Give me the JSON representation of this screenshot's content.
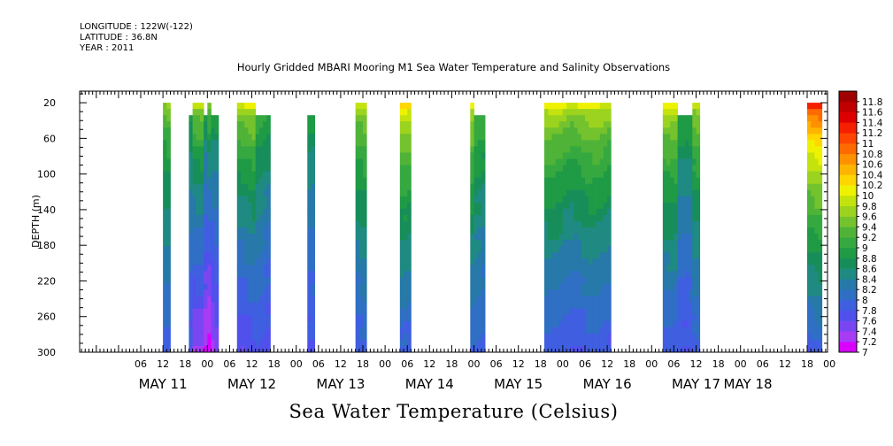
{
  "header": {
    "longitude": "LONGITUDE : 122W(-122)",
    "latitude": "LATITUDE : 36.8N",
    "year": "YEAR : 2011"
  },
  "chart_data": {
    "type": "heatmap",
    "title": "Hourly Gridded MBARI Mooring M1 Sea Water Temperature and Salinity Observations",
    "bottom_title": "Sea Water Temperature (Celsius)",
    "ylabel": "DEPTH (m)",
    "y_ticks": [
      20,
      60,
      100,
      140,
      180,
      220,
      260,
      300
    ],
    "ylim": [
      300,
      7
    ],
    "y_reversed": true,
    "x_unit": "hours from 2011-05-11 00:00",
    "xlim": [
      -10.5,
      191.5
    ],
    "x_hour_ticks": [
      {
        "h": 6,
        "label": "06"
      },
      {
        "h": 12,
        "label": "12"
      },
      {
        "h": 18,
        "label": "18"
      },
      {
        "h": 24,
        "label": "00"
      },
      {
        "h": 30,
        "label": "06"
      },
      {
        "h": 36,
        "label": "12"
      },
      {
        "h": 42,
        "label": "18"
      },
      {
        "h": 48,
        "label": "00"
      },
      {
        "h": 54,
        "label": "06"
      },
      {
        "h": 60,
        "label": "12"
      },
      {
        "h": 66,
        "label": "18"
      },
      {
        "h": 72,
        "label": "00"
      },
      {
        "h": 78,
        "label": "06"
      },
      {
        "h": 84,
        "label": "12"
      },
      {
        "h": 90,
        "label": "18"
      },
      {
        "h": 96,
        "label": "00"
      },
      {
        "h": 102,
        "label": "06"
      },
      {
        "h": 108,
        "label": "12"
      },
      {
        "h": 114,
        "label": "18"
      },
      {
        "h": 120,
        "label": "00"
      },
      {
        "h": 126,
        "label": "06"
      },
      {
        "h": 132,
        "label": "12"
      },
      {
        "h": 138,
        "label": "18"
      },
      {
        "h": 144,
        "label": "00"
      },
      {
        "h": 150,
        "label": "06"
      },
      {
        "h": 156,
        "label": "12"
      },
      {
        "h": 162,
        "label": "18"
      },
      {
        "h": 168,
        "label": "00"
      },
      {
        "h": 174,
        "label": "06"
      },
      {
        "h": 180,
        "label": "12"
      },
      {
        "h": 186,
        "label": "18"
      },
      {
        "h": 192,
        "label": "00"
      }
    ],
    "x_day_labels": [
      {
        "h": 12,
        "label": "MAY 11"
      },
      {
        "h": 36,
        "label": "MAY 12"
      },
      {
        "h": 60,
        "label": "MAY 13"
      },
      {
        "h": 84,
        "label": "MAY 14"
      },
      {
        "h": 108,
        "label": "MAY 15"
      },
      {
        "h": 132,
        "label": "MAY 16"
      },
      {
        "h": 156,
        "label": "MAY 17"
      },
      {
        "h": 170,
        "label": "MAY 18"
      }
    ],
    "colorbar": {
      "levels": [
        7,
        7.2,
        7.4,
        7.6,
        7.8,
        8,
        8.2,
        8.4,
        8.6,
        8.8,
        9,
        9.2,
        9.4,
        9.6,
        9.8,
        10,
        10.2,
        10.4,
        10.6,
        10.8,
        11,
        11.2,
        11.4,
        11.6,
        11.8
      ],
      "labels": [
        "7",
        "7.2",
        "7.4",
        "7.6",
        "7.8",
        "8",
        "8.2",
        "8.4",
        "8.6",
        "8.8",
        "9",
        "9.2",
        "9.4",
        "9.6",
        "9.8",
        "10",
        "10.2",
        "10.4",
        "10.6",
        "10.8",
        "11",
        "11.2",
        "11.4",
        "11.6",
        "11.8"
      ],
      "colors": [
        "#d900ff",
        "#a83cf5",
        "#7a46f2",
        "#5050ec",
        "#3f5fe0",
        "#2f6fc4",
        "#2679a8",
        "#1f8a82",
        "#178e5a",
        "#1f9a45",
        "#36a840",
        "#4fb338",
        "#74c22d",
        "#9bd31f",
        "#c4e20e",
        "#eef200",
        "#ffd600",
        "#ffb400",
        "#ff9000",
        "#ff6a00",
        "#ff4500",
        "#f42000",
        "#de0000",
        "#c00000",
        "#a00000"
      ]
    },
    "segments": [
      {
        "start": 12,
        "end": 14,
        "top": 20,
        "temp_surface": 9.6,
        "temp_bottom": 7.8
      },
      {
        "start": 19,
        "end": 20,
        "top": 34,
        "temp_surface": 9.2,
        "temp_bottom": 7.8
      },
      {
        "start": 20,
        "end": 23,
        "top": 20,
        "temp_surface": 9.8,
        "temp_bottom": 7.3
      },
      {
        "start": 23,
        "end": 24,
        "top": 34,
        "temp_surface": 9.2,
        "temp_bottom": 7.2
      },
      {
        "start": 24,
        "end": 25,
        "top": 20,
        "temp_surface": 9.7,
        "temp_bottom": 7.1
      },
      {
        "start": 25,
        "end": 27,
        "top": 34,
        "temp_surface": 9.2,
        "temp_bottom": 7.4
      },
      {
        "start": 32,
        "end": 37,
        "top": 20,
        "temp_surface": 10.0,
        "temp_bottom": 7.6
      },
      {
        "start": 37,
        "end": 41,
        "top": 34,
        "temp_surface": 9.3,
        "temp_bottom": 7.7
      },
      {
        "start": 51,
        "end": 53,
        "top": 34,
        "temp_surface": 9.2,
        "temp_bottom": 7.8
      },
      {
        "start": 64,
        "end": 67,
        "top": 20,
        "temp_surface": 9.8,
        "temp_bottom": 7.8
      },
      {
        "start": 76,
        "end": 79,
        "top": 20,
        "temp_surface": 10.2,
        "temp_bottom": 7.8
      },
      {
        "start": 95,
        "end": 96,
        "top": 20,
        "temp_surface": 10.0,
        "temp_bottom": 7.9
      },
      {
        "start": 96,
        "end": 99,
        "top": 34,
        "temp_surface": 9.4,
        "temp_bottom": 7.9
      },
      {
        "start": 115,
        "end": 133,
        "top": 20,
        "temp_surface": 10.0,
        "temp_bottom": 7.8
      },
      {
        "start": 147,
        "end": 151,
        "top": 20,
        "temp_surface": 10.0,
        "temp_bottom": 7.8
      },
      {
        "start": 151,
        "end": 155,
        "top": 34,
        "temp_surface": 9.3,
        "temp_bottom": 7.8
      },
      {
        "start": 155,
        "end": 157,
        "top": 20,
        "temp_surface": 9.8,
        "temp_bottom": 7.8
      },
      {
        "start": 186,
        "end": 190,
        "top": 20,
        "temp_surface": 11.3,
        "temp_bottom": 7.8
      }
    ]
  }
}
